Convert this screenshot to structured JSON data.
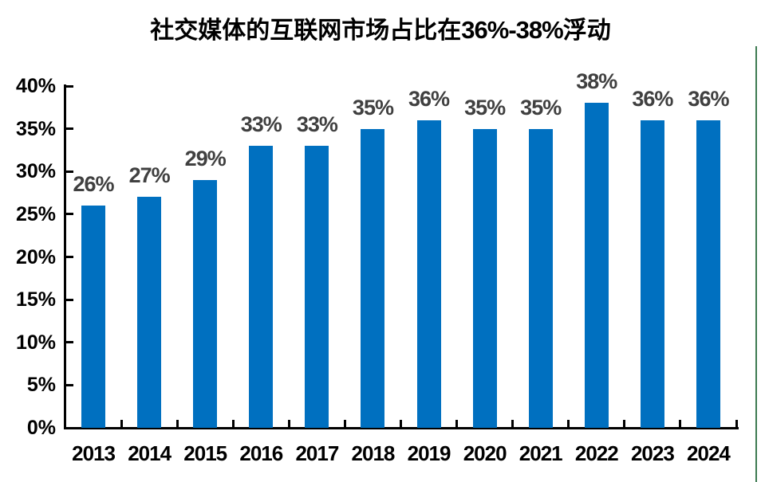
{
  "title": {
    "full": "社交媒体的互联网市场占比在36%-38%浮动",
    "prefix": "社交媒体的互联网市场占比在",
    "range": "36%-38%",
    "suffix": "浮动"
  },
  "chart_data": {
    "type": "bar",
    "title": "社交媒体的互联网市场占比在36%-38%浮动",
    "categories": [
      "2013",
      "2014",
      "2015",
      "2016",
      "2017",
      "2018",
      "2019",
      "2020",
      "2021",
      "2022",
      "2023",
      "2024"
    ],
    "values": [
      26,
      27,
      29,
      33,
      33,
      35,
      36,
      35,
      35,
      38,
      36,
      36
    ],
    "data_labels": [
      "26%",
      "27%",
      "29%",
      "33%",
      "33%",
      "35%",
      "36%",
      "35%",
      "35%",
      "38%",
      "36%",
      "36%"
    ],
    "unit": "%",
    "xlabel": "",
    "ylabel": "",
    "ylim": [
      0,
      40
    ],
    "ytick_step": 5,
    "ytick_labels": [
      "0%",
      "5%",
      "10%",
      "15%",
      "20%",
      "25%",
      "30%",
      "35%",
      "40%"
    ],
    "grid": false,
    "legend": false,
    "legend_position": "none",
    "colors": {
      "bar": "#0070C0",
      "data_label": "#404040",
      "axis": "#000000",
      "axis_text": "#000000",
      "title_text": "#000000",
      "background": "#FFFFFF",
      "chart_border": "#3E7B52"
    }
  }
}
